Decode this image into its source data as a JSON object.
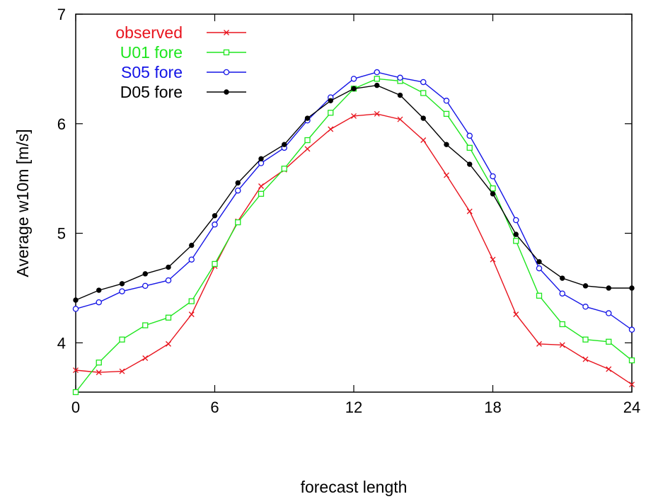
{
  "chart_data": {
    "type": "line",
    "xlabel": "forecast length",
    "ylabel": "Average w10m [m/s]",
    "xlim": [
      0,
      24
    ],
    "ylim": [
      3.55,
      7
    ],
    "xticks": [
      0,
      6,
      12,
      18,
      24
    ],
    "yticks": [
      4,
      5,
      6,
      7
    ],
    "grid": false,
    "legend_position": "top-left",
    "x": [
      0,
      1,
      2,
      3,
      4,
      5,
      6,
      7,
      8,
      9,
      10,
      11,
      12,
      13,
      14,
      15,
      16,
      17,
      18,
      19,
      20,
      21,
      22,
      23,
      24
    ],
    "series": [
      {
        "name": "observed",
        "color": "#e8141e",
        "marker": "x",
        "values": [
          3.75,
          3.73,
          3.74,
          3.86,
          3.99,
          4.26,
          4.7,
          5.11,
          5.43,
          5.58,
          5.77,
          5.95,
          6.07,
          6.09,
          6.04,
          5.85,
          5.53,
          5.2,
          4.76,
          4.26,
          3.99,
          3.98,
          3.85,
          3.76,
          3.62
        ]
      },
      {
        "name": "U01 fore",
        "color": "#1ee61e",
        "marker": "square",
        "values": [
          3.55,
          3.82,
          4.03,
          4.16,
          4.23,
          4.38,
          4.72,
          5.1,
          5.36,
          5.59,
          5.85,
          6.1,
          6.32,
          6.41,
          6.39,
          6.28,
          6.09,
          5.78,
          5.41,
          4.93,
          4.43,
          4.17,
          4.03,
          4.01,
          3.84
        ]
      },
      {
        "name": "S05 fore",
        "color": "#1414e6",
        "marker": "circle",
        "values": [
          4.31,
          4.37,
          4.47,
          4.52,
          4.57,
          4.76,
          5.08,
          5.39,
          5.64,
          5.78,
          6.03,
          6.24,
          6.41,
          6.47,
          6.42,
          6.38,
          6.21,
          5.89,
          5.52,
          5.12,
          4.68,
          4.45,
          4.33,
          4.27,
          4.12
        ]
      },
      {
        "name": "D05 fore",
        "color": "#000000",
        "marker": "dot",
        "values": [
          4.39,
          4.48,
          4.54,
          4.63,
          4.69,
          4.89,
          5.16,
          5.46,
          5.68,
          5.81,
          6.05,
          6.21,
          6.32,
          6.35,
          6.26,
          6.05,
          5.81,
          5.63,
          5.36,
          4.99,
          4.74,
          4.59,
          4.52,
          4.5,
          4.5
        ]
      }
    ]
  }
}
